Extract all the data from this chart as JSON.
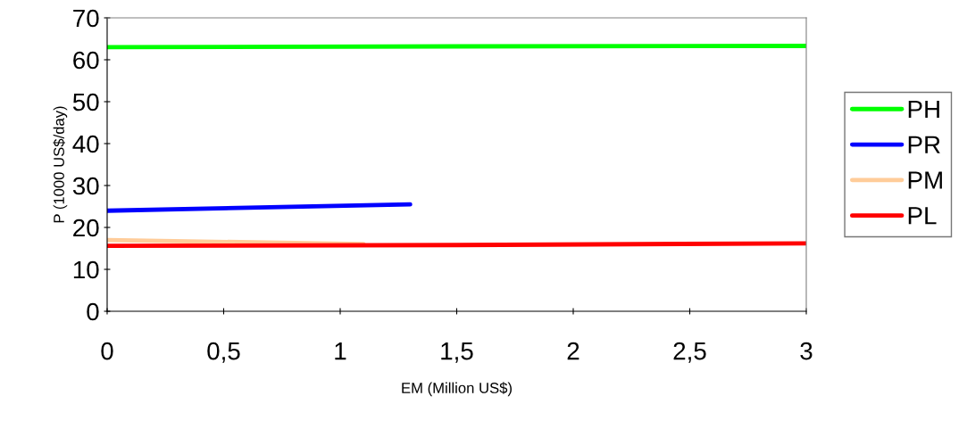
{
  "chart_data": {
    "type": "line",
    "xlabel": "EM (Million US$)",
    "ylabel": "P (1000 US$/day)",
    "series": [
      {
        "name": "PH",
        "color": "#00ff00",
        "x": [
          0,
          1.5,
          3
        ],
        "values": [
          63,
          63.2,
          63.3
        ]
      },
      {
        "name": "PR",
        "color": "#0000ff",
        "x": [
          0,
          1.3
        ],
        "values": [
          24,
          25.5
        ]
      },
      {
        "name": "PM",
        "color": "#ffcc99",
        "x": [
          0,
          1.1
        ],
        "values": [
          17,
          16
        ]
      },
      {
        "name": "PL",
        "color": "#ff0000",
        "x": [
          0,
          1.5,
          3
        ],
        "values": [
          15.6,
          15.8,
          16.2
        ]
      }
    ],
    "xlim": [
      0,
      3
    ],
    "xticks": [
      0,
      {
        "value": 0.5,
        "label": "0,5"
      },
      1,
      {
        "value": 1.5,
        "label": "1,5"
      },
      2,
      {
        "value": 2.5,
        "label": "2,5"
      },
      3
    ],
    "ylim": [
      0,
      70
    ],
    "yticks": [
      0,
      10,
      20,
      30,
      40,
      50,
      60,
      70
    ],
    "grid": false,
    "legend": "right",
    "marker": "none",
    "line_style": "solid"
  }
}
